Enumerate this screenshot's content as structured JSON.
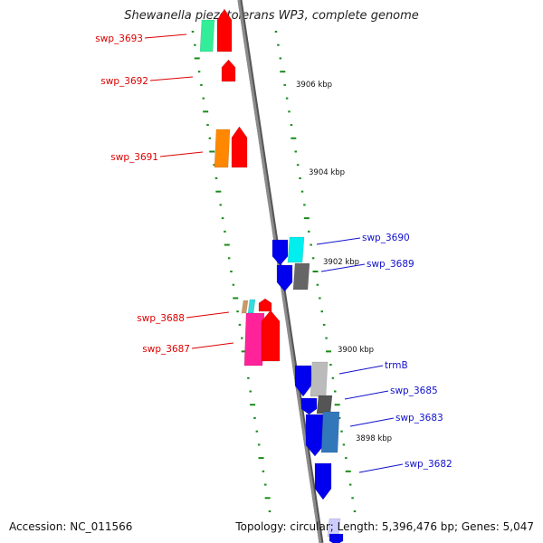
{
  "title": "Shewanella piezotolerans WP3, complete genome",
  "accession": "Accession: NC_011566",
  "summary": "Topology: circular; Length: 5,396,476 bp; Genes: 5,047",
  "colors": {
    "backbone": "#8c8c8c",
    "ticks": "#1a8c1a",
    "left_label": "#dd0000",
    "right_label": "#1111cc"
  },
  "scale_labels": [
    "3906 kbp",
    "3904 kbp",
    "3902 kbp",
    "3900 kbp",
    "3898 kbp"
  ],
  "genes_left": [
    {
      "name": "swp_3693",
      "colors": [
        "#33ee99",
        "#ff0000"
      ]
    },
    {
      "name": "swp_3692",
      "colors": [
        "#ff0000"
      ]
    },
    {
      "name": "swp_3691",
      "colors": [
        "#ff8800",
        "#ff0000"
      ]
    },
    {
      "name": "swp_3688",
      "colors": [
        "#cc9966",
        "#33dddd",
        "#ff0000"
      ]
    },
    {
      "name": "swp_3687",
      "colors": [
        "#ff2299",
        "#ff0000"
      ]
    }
  ],
  "genes_right": [
    {
      "name": "swp_3690",
      "colors": [
        "#0000ee",
        "#00eeee"
      ]
    },
    {
      "name": "swp_3689",
      "colors": [
        "#0000ee",
        "#666666"
      ]
    },
    {
      "name": "trmB",
      "colors": [
        "#0000ee",
        "#bbbbbb"
      ]
    },
    {
      "name": "swp_3685",
      "colors": [
        "#0000ee",
        "#555555"
      ]
    },
    {
      "name": "swp_3683",
      "colors": [
        "#0000ee",
        "#3377bb"
      ]
    },
    {
      "name": "swp_3682",
      "colors": [
        "#0000ee"
      ]
    }
  ]
}
